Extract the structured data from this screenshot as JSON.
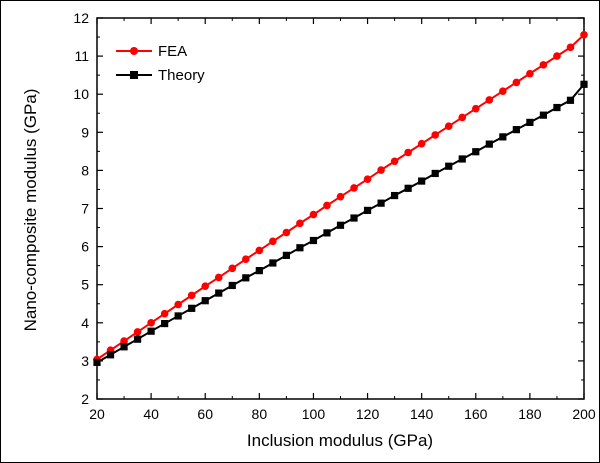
{
  "chart_data": {
    "type": "line",
    "title": "",
    "xlabel": "Inclusion modulus (GPa)",
    "ylabel": "Nano-composite modulus (GPa)",
    "xlim": [
      20,
      200
    ],
    "ylim": [
      2,
      12
    ],
    "xticks": [
      20,
      40,
      60,
      80,
      100,
      120,
      140,
      160,
      180,
      200
    ],
    "yticks": [
      2,
      3,
      4,
      5,
      6,
      7,
      8,
      9,
      10,
      11,
      12
    ],
    "grid": false,
    "legend_position": "top-left",
    "x": [
      20,
      25,
      30,
      35,
      40,
      45,
      50,
      55,
      60,
      65,
      70,
      75,
      80,
      85,
      90,
      95,
      100,
      105,
      110,
      115,
      120,
      125,
      130,
      135,
      140,
      145,
      150,
      155,
      160,
      165,
      170,
      175,
      180,
      185,
      190,
      195,
      200
    ],
    "series": [
      {
        "name": "FEA",
        "color": "#ff0000",
        "marker": "circle",
        "values": [
          3.04,
          3.28,
          3.52,
          3.76,
          4.0,
          4.24,
          4.48,
          4.72,
          4.96,
          5.19,
          5.43,
          5.67,
          5.9,
          6.14,
          6.37,
          6.61,
          6.84,
          7.08,
          7.31,
          7.54,
          7.77,
          8.01,
          8.24,
          8.47,
          8.7,
          8.93,
          9.16,
          9.39,
          9.62,
          9.85,
          10.08,
          10.31,
          10.54,
          10.77,
          11.0,
          11.23,
          11.56
        ]
      },
      {
        "name": "Theory",
        "color": "#000000",
        "marker": "square",
        "values": [
          2.96,
          3.16,
          3.37,
          3.57,
          3.78,
          3.98,
          4.18,
          4.38,
          4.58,
          4.78,
          4.98,
          5.18,
          5.37,
          5.57,
          5.77,
          5.97,
          6.16,
          6.36,
          6.56,
          6.75,
          6.95,
          7.14,
          7.34,
          7.53,
          7.72,
          7.92,
          8.11,
          8.3,
          8.49,
          8.69,
          8.88,
          9.07,
          9.26,
          9.45,
          9.65,
          9.84,
          10.26
        ]
      }
    ]
  }
}
